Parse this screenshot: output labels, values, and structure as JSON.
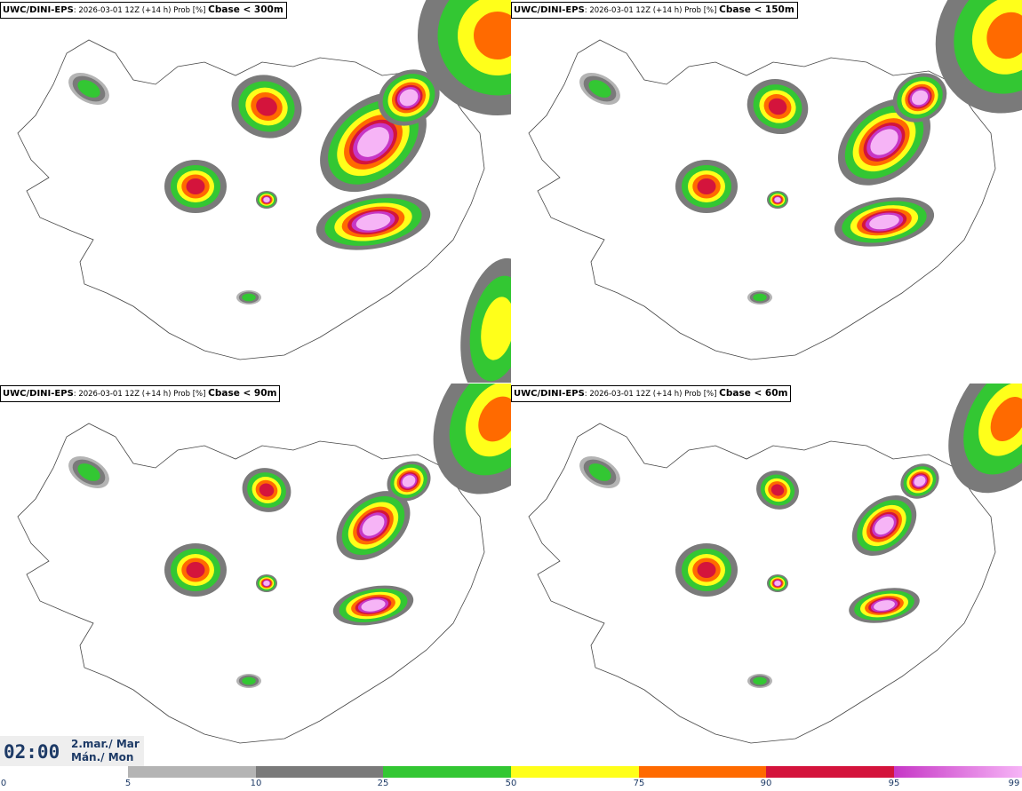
{
  "panels": [
    {
      "model": "UWC/DINI-EPS",
      "run": ": 2026-03-01 12Z (+14 h) Prob [%] ",
      "param": "Cbase < 300m"
    },
    {
      "model": "UWC/DINI-EPS",
      "run": ": 2026-03-01 12Z (+14 h) Prob [%] ",
      "param": "Cbase < 150m"
    },
    {
      "model": "UWC/DINI-EPS",
      "run": ": 2026-03-01 12Z (+14 h) Prob [%] ",
      "param": "Cbase < 90m"
    },
    {
      "model": "UWC/DINI-EPS",
      "run": ": 2026-03-01 12Z (+14 h) Prob [%] ",
      "param": "Cbase < 60m"
    }
  ],
  "time": {
    "hour": "02:00",
    "date_line1": "2.mar./ Mar",
    "date_line2": "Mán./ Mon"
  },
  "colorbar": {
    "ticks": [
      "0",
      "5",
      "10",
      "25",
      "50",
      "75",
      "90",
      "95",
      "99"
    ],
    "colors": [
      "#ffffff",
      "#b4b4b4",
      "#7a7a7a",
      "#33c733",
      "#ffff1a",
      "#ff6a00",
      "#d4143c",
      "#c637c6",
      "#f6b4f6"
    ]
  },
  "legend_colors": {
    "land_outline": "#444444",
    "water": "#ffffff"
  }
}
